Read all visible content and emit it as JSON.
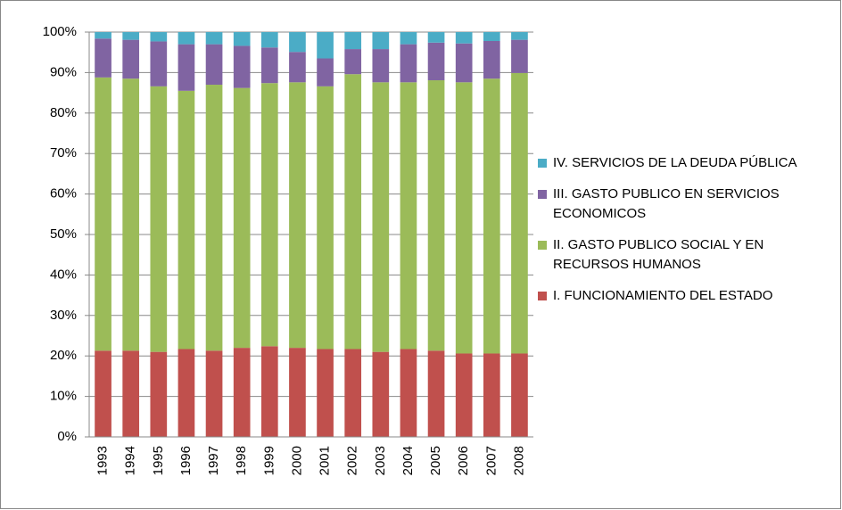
{
  "chart_data": {
    "type": "stacked_bar_100",
    "categories": [
      "1993",
      "1994",
      "1995",
      "1996",
      "1997",
      "1998",
      "1999",
      "2000",
      "2001",
      "2002",
      "2003",
      "2004",
      "2005",
      "2006",
      "2007",
      "2008"
    ],
    "series": [
      {
        "name": "I. FUNCIONAMIENTO DEL ESTADO",
        "color": "#c0504d",
        "values": [
          21.3,
          21.3,
          21,
          21.7,
          21.3,
          22,
          22.4,
          22,
          21.7,
          21.7,
          21,
          21.7,
          21.3,
          20.6,
          20.6,
          20.6
        ]
      },
      {
        "name": "II. GASTO PUBLICO SOCIAL Y EN RECURSOS HUMANOS",
        "color": "#9bbb59",
        "values": [
          67.5,
          67.2,
          65.6,
          63.8,
          65.7,
          64.2,
          65,
          65.6,
          64.9,
          67.9,
          66.6,
          65.9,
          66.8,
          67,
          67.9,
          69.3
        ]
      },
      {
        "name": "III. GASTO PUBLICO EN SERVICIOS ECONOMICOS",
        "color": "#8064a2",
        "values": [
          9.6,
          9.6,
          11.1,
          11.5,
          10,
          10.4,
          8.8,
          7.5,
          6.9,
          6.2,
          8.2,
          9.4,
          9.3,
          9.6,
          9.3,
          8.2
        ]
      },
      {
        "name": "IV. SERVICIOS DE LA DEUDA PÚBLICA",
        "color": "#4bacc6",
        "values": [
          1.6,
          1.9,
          2.3,
          3,
          3,
          3.4,
          3.8,
          4.9,
          6.5,
          4.2,
          4.2,
          3,
          2.6,
          2.8,
          2.2,
          1.9
        ]
      }
    ],
    "ylim": [
      0,
      100
    ],
    "yticks": [
      {
        "value": 0,
        "label": "0%"
      },
      {
        "value": 10,
        "label": "10%"
      },
      {
        "value": 20,
        "label": "20%"
      },
      {
        "value": 30,
        "label": "30%"
      },
      {
        "value": 40,
        "label": "40%"
      },
      {
        "value": 50,
        "label": "50%"
      },
      {
        "value": 60,
        "label": "60%"
      },
      {
        "value": 70,
        "label": "70%"
      },
      {
        "value": 80,
        "label": "80%"
      },
      {
        "value": 90,
        "label": "90%"
      },
      {
        "value": 100,
        "label": "100%"
      }
    ],
    "grid": true,
    "legend": "right"
  }
}
